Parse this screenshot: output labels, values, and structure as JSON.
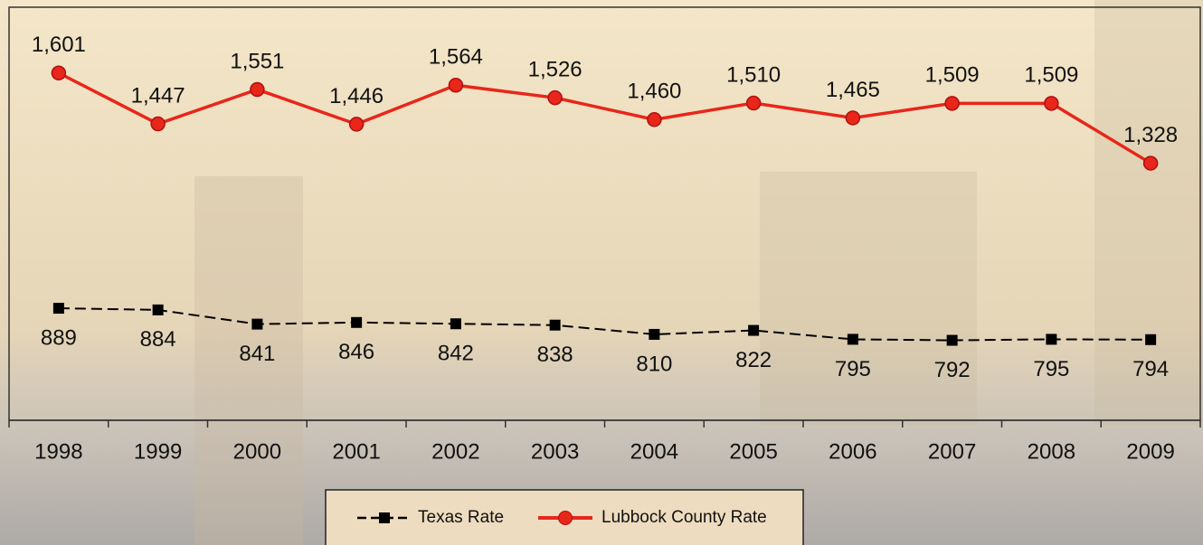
{
  "chart_data": {
    "type": "line",
    "categories": [
      "1998",
      "1999",
      "2000",
      "2001",
      "2002",
      "2003",
      "2004",
      "2005",
      "2006",
      "2007",
      "2008",
      "2009"
    ],
    "series": [
      {
        "name": "Texas Rate",
        "color": "#000000",
        "values": [
          889,
          884,
          841,
          846,
          842,
          838,
          810,
          822,
          795,
          792,
          795,
          794
        ]
      },
      {
        "name": "Lubbock County Rate",
        "color": "#e8261a",
        "values": [
          1601,
          1447,
          1551,
          1446,
          1564,
          1526,
          1460,
          1510,
          1465,
          1509,
          1509,
          1328
        ],
        "value_labels": [
          "1,601",
          "1,447",
          "1,551",
          "1,446",
          "1,564",
          "1,526",
          "1,460",
          "1,510",
          "1,465",
          "1,509",
          "1,509",
          "1,328"
        ]
      }
    ],
    "ylim": [
      550,
      1800
    ],
    "legend": "bottom"
  }
}
